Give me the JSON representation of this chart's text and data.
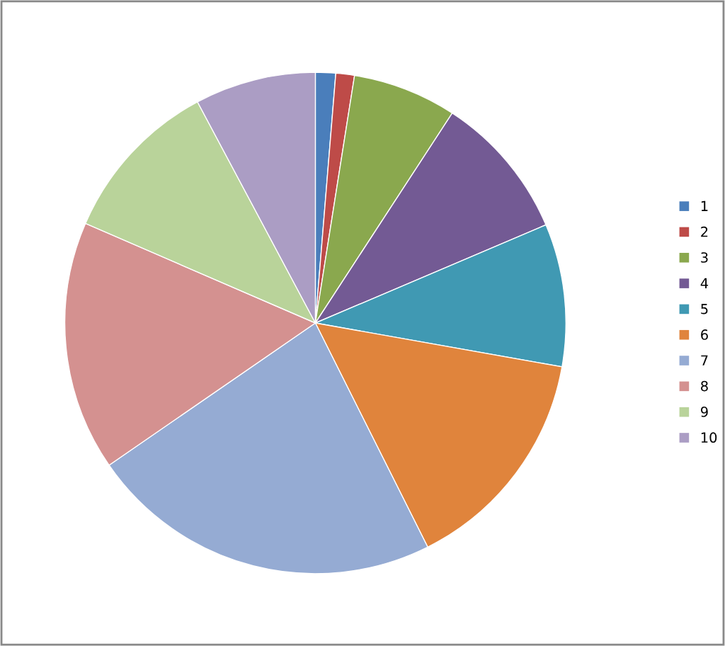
{
  "chart_data": {
    "type": "pie",
    "categories": [
      "1",
      "2",
      "3",
      "4",
      "5",
      "6",
      "7",
      "8",
      "9",
      "10"
    ],
    "values": [
      1.3,
      1.2,
      6.7,
      9.4,
      9.2,
      14.8,
      22.8,
      16.1,
      10.7,
      7.8
    ],
    "colors": [
      "#4a7ebb",
      "#be4b48",
      "#8aa84e",
      "#735a94",
      "#4099b3",
      "#e0843c",
      "#95abd3",
      "#d49190",
      "#b9d39a",
      "#ab9dc4"
    ],
    "legend": "right"
  }
}
